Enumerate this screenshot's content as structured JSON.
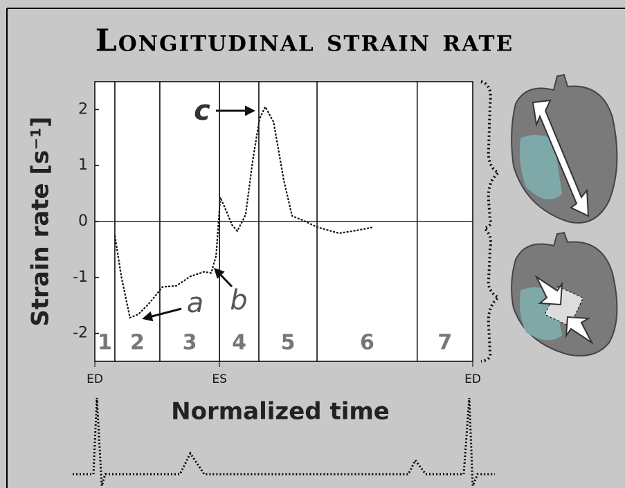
{
  "chart_data": {
    "type": "line",
    "title": "Longitudinal strain rate",
    "y_label": "Strain rate [s⁻¹]",
    "x_label": "Normalized time",
    "xlim": [
      0,
      1
    ],
    "ylim": [
      -2.5,
      2.5
    ],
    "yticks": [
      2,
      1,
      0,
      -1,
      -2
    ],
    "segment_bounds": [
      0.053,
      0.172,
      0.33,
      0.434,
      0.588,
      0.853
    ],
    "segments": [
      "1",
      "2",
      "3",
      "4",
      "5",
      "6",
      "7"
    ],
    "markers": [
      {
        "x": 0,
        "label": "ED"
      },
      {
        "x": 0.33,
        "label": "ES"
      },
      {
        "x": 1,
        "label": "ED"
      }
    ],
    "annotations": [
      "a",
      "b",
      "c"
    ],
    "series": [
      {
        "color": "#111111",
        "x": [
          0.053,
          0.07,
          0.093,
          0.115,
          0.143,
          0.179,
          0.216,
          0.253,
          0.289,
          0.308,
          0.321,
          0.332,
          0.344,
          0.363,
          0.377,
          0.399,
          0.418,
          0.436,
          0.451,
          0.473,
          0.5,
          0.522,
          0.551,
          0.588,
          0.646,
          0.692,
          0.738
        ],
        "values": [
          -0.25,
          -0.98,
          -1.72,
          -1.66,
          -1.47,
          -1.17,
          -1.15,
          -0.98,
          -0.9,
          -0.92,
          -0.61,
          0.43,
          0.25,
          -0.06,
          -0.17,
          0.12,
          1.1,
          1.84,
          2.05,
          1.78,
          0.74,
          0.1,
          0.02,
          -0.1,
          -0.21,
          -0.16,
          -0.1
        ]
      }
    ]
  }
}
